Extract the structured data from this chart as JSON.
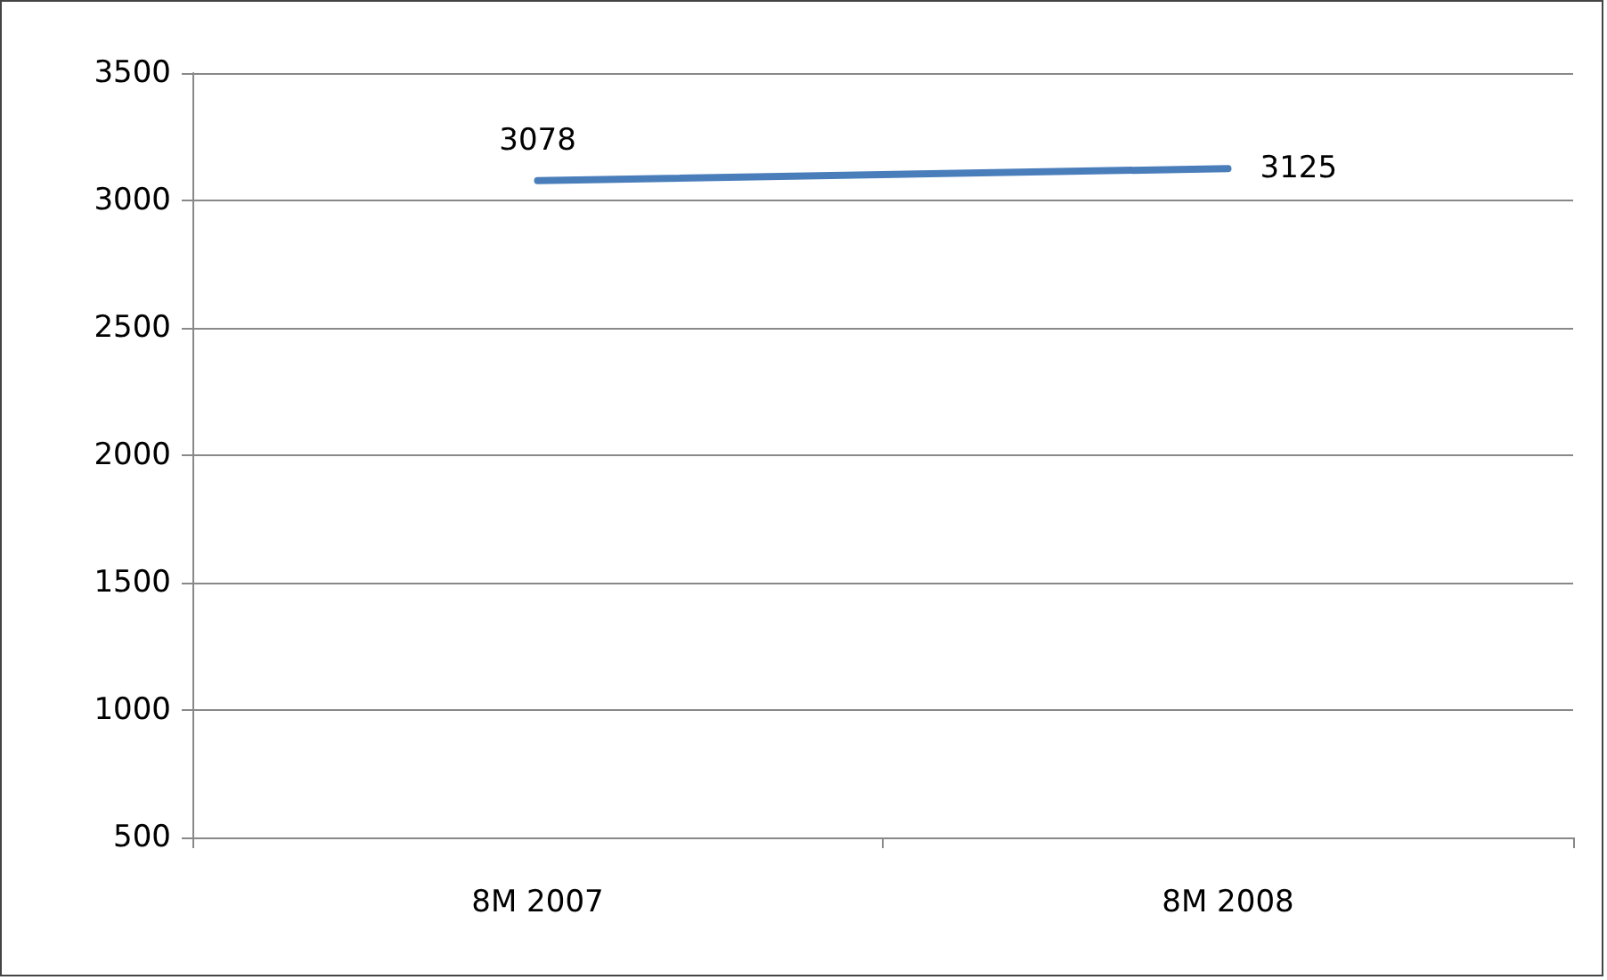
{
  "chart_data": {
    "type": "line",
    "categories": [
      "8M 2007",
      "8M 2008"
    ],
    "series": [
      {
        "color": "#4a7ebb",
        "values": [
          3078,
          3125
        ]
      }
    ],
    "ylim": [
      500,
      3500
    ],
    "yticks": [
      500,
      1000,
      1500,
      2000,
      2500,
      3000,
      3500
    ],
    "grid": "y",
    "data_labels": true,
    "marker": "none"
  }
}
